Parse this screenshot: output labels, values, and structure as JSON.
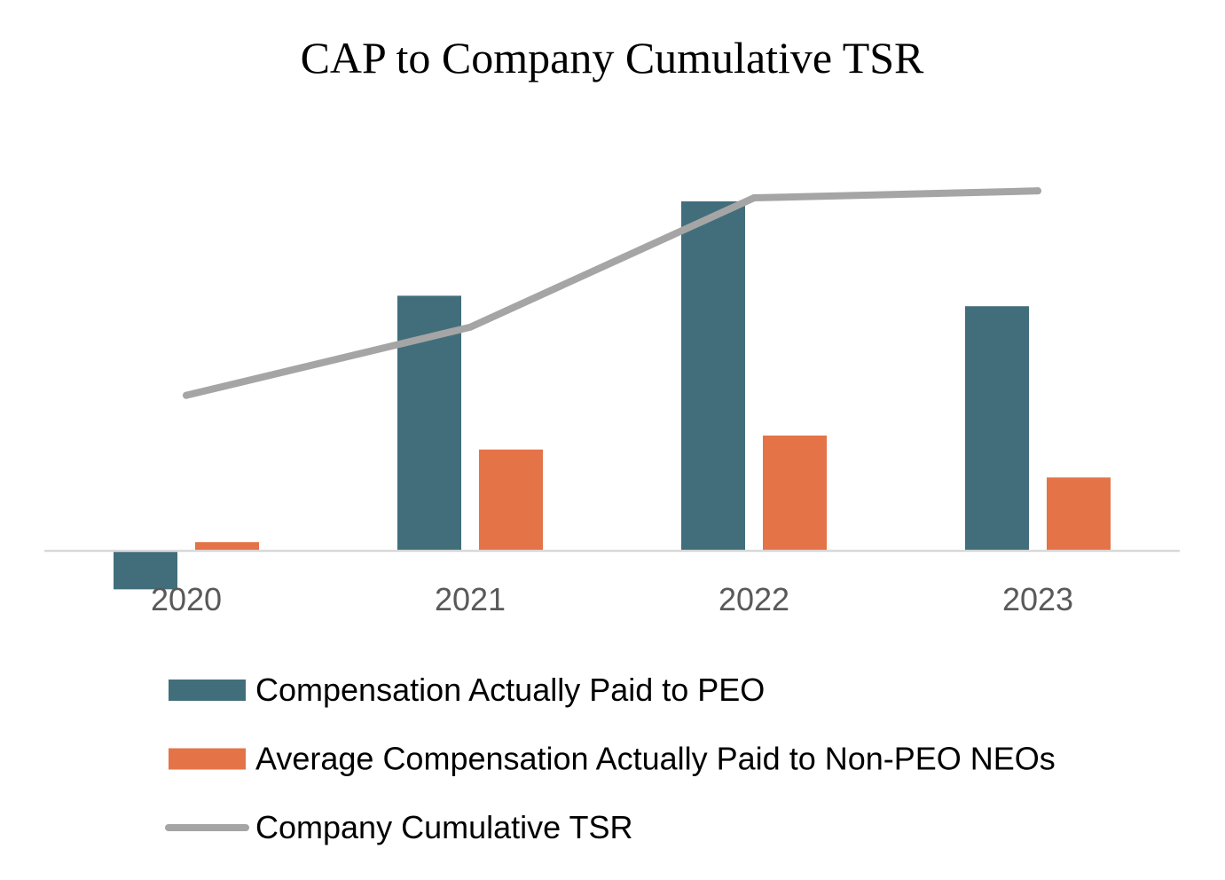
{
  "chart_data": {
    "type": "bar",
    "title": "CAP to Company Cumulative TSR",
    "categories": [
      "2020",
      "2021",
      "2022",
      "2023"
    ],
    "xlabel": "",
    "ylabel": "",
    "axis_visible": false,
    "grid": false,
    "legend_position": "bottom",
    "series": [
      {
        "name": "Compensation Actually Paid to PEO",
        "kind": "bar",
        "color": "#426E7C",
        "values": [
          -1.1,
          7.3,
          10.0,
          7.0
        ]
      },
      {
        "name": "Average Compensation Actually Paid to Non-PEO NEOs",
        "kind": "bar",
        "color": "#E57348",
        "values": [
          0.25,
          2.9,
          3.3,
          2.1
        ]
      },
      {
        "name": "Company Cumulative TSR",
        "kind": "line",
        "color": "#A5A5A5",
        "values": [
          4.45,
          6.4,
          10.1,
          10.3
        ]
      }
    ],
    "ylim": [
      -1.5,
      11.5
    ]
  }
}
